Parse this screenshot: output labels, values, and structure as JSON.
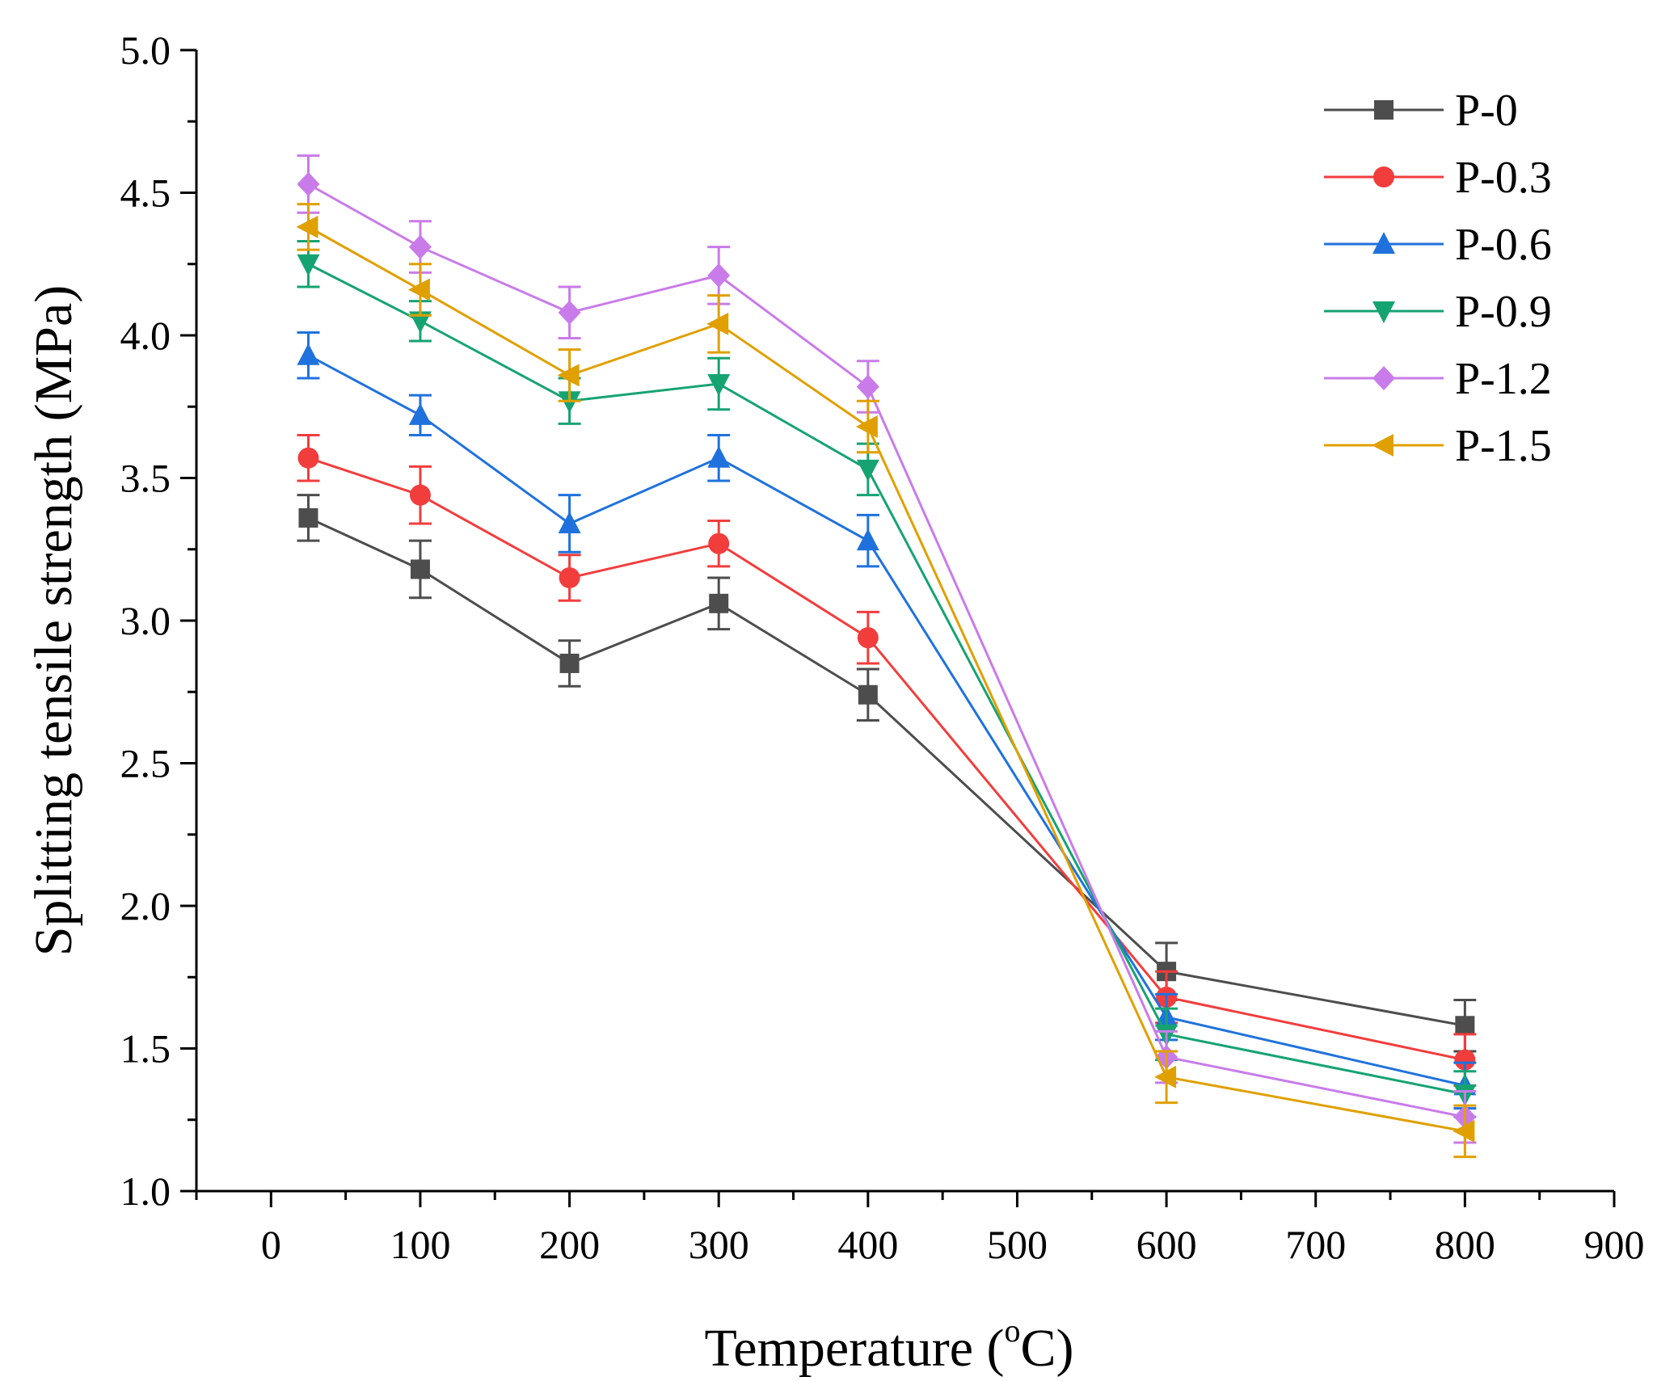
{
  "chart_data": {
    "type": "line",
    "title": "",
    "xlabel": "Temperature",
    "xlabel_unit_open": " (",
    "xlabel_unit_sup": "o",
    "xlabel_unit_close": "C)",
    "ylabel": "Splitting tensile strength (MPa)",
    "xlim": [
      -50,
      900
    ],
    "ylim": [
      1.0,
      5.0
    ],
    "xticks": [
      0,
      100,
      200,
      300,
      400,
      500,
      600,
      700,
      800,
      900
    ],
    "xtick_labels": [
      "0",
      "100",
      "200",
      "300",
      "400",
      "500",
      "600",
      "700",
      "800",
      "900"
    ],
    "yticks": [
      1.0,
      1.5,
      2.0,
      2.5,
      3.0,
      3.5,
      4.0,
      4.5,
      5.0
    ],
    "ytick_labels": [
      "1.0",
      "1.5",
      "2.0",
      "2.5",
      "3.0",
      "3.5",
      "4.0",
      "4.5",
      "5.0"
    ],
    "legend_position": "top-right",
    "grid": false,
    "x": [
      25,
      100,
      200,
      300,
      400,
      600,
      800
    ],
    "series": [
      {
        "name": "P-0",
        "color": "#4d4d4d",
        "marker": "square",
        "values": [
          3.36,
          3.18,
          2.85,
          3.06,
          2.74,
          1.77,
          1.58
        ],
        "errors": [
          0.08,
          0.1,
          0.08,
          0.09,
          0.09,
          0.1,
          0.09
        ]
      },
      {
        "name": "P-0.3",
        "color": "#f23d3d",
        "marker": "circle",
        "values": [
          3.57,
          3.44,
          3.15,
          3.27,
          2.94,
          1.68,
          1.46
        ],
        "errors": [
          0.08,
          0.1,
          0.08,
          0.08,
          0.09,
          0.09,
          0.09
        ]
      },
      {
        "name": "P-0.6",
        "color": "#1f72dd",
        "marker": "triangle-up",
        "values": [
          3.93,
          3.72,
          3.34,
          3.57,
          3.28,
          1.61,
          1.37
        ],
        "errors": [
          0.08,
          0.07,
          0.1,
          0.08,
          0.09,
          0.08,
          0.08
        ]
      },
      {
        "name": "P-0.9",
        "color": "#16a372",
        "marker": "triangle-down",
        "values": [
          4.25,
          4.05,
          3.77,
          3.83,
          3.53,
          1.55,
          1.34
        ],
        "errors": [
          0.08,
          0.07,
          0.08,
          0.09,
          0.09,
          0.09,
          0.08
        ]
      },
      {
        "name": "P-1.2",
        "color": "#c97bea",
        "marker": "diamond",
        "values": [
          4.53,
          4.31,
          4.08,
          4.21,
          3.82,
          1.47,
          1.26
        ],
        "errors": [
          0.1,
          0.09,
          0.09,
          0.1,
          0.09,
          0.09,
          0.09
        ]
      },
      {
        "name": "P-1.5",
        "color": "#e0a000",
        "marker": "triangle-left",
        "values": [
          4.38,
          4.16,
          3.86,
          4.04,
          3.68,
          1.4,
          1.21
        ],
        "errors": [
          0.08,
          0.09,
          0.09,
          0.1,
          0.09,
          0.09,
          0.09
        ]
      }
    ]
  }
}
